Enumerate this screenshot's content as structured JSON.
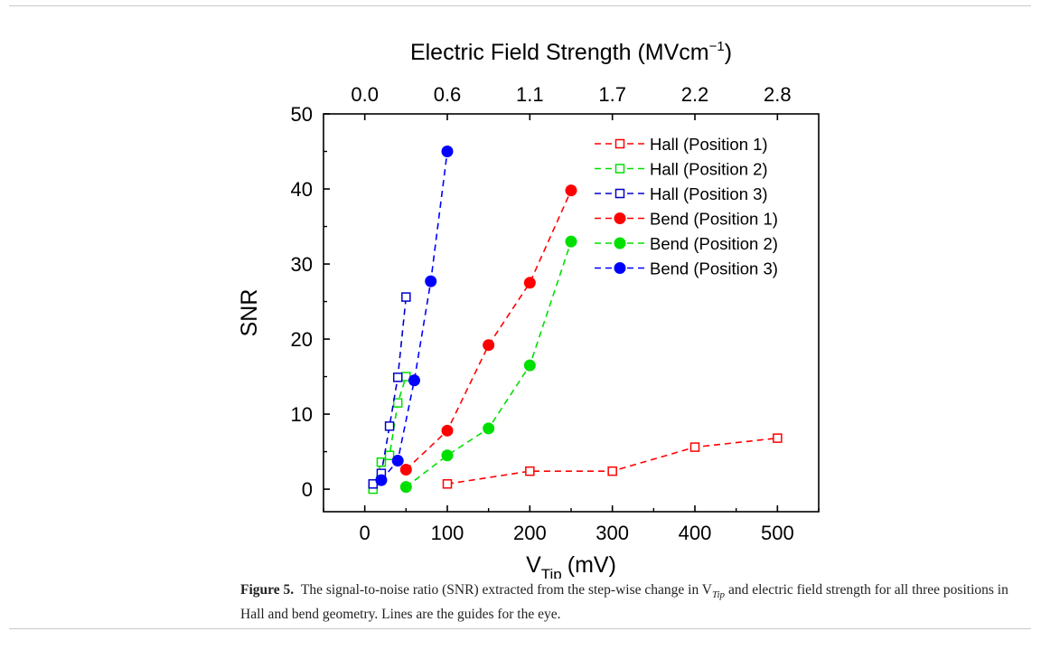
{
  "chart_data": {
    "type": "scatter",
    "title": "",
    "top_axis_label": "Electric Field Strength (MVcm⁻¹)",
    "top_axis_ticks": [
      {
        "x": 0,
        "label": "0.0"
      },
      {
        "x": 100,
        "label": "0.6"
      },
      {
        "x": 200,
        "label": "1.1"
      },
      {
        "x": 300,
        "label": "1.7"
      },
      {
        "x": 400,
        "label": "2.2"
      },
      {
        "x": 500,
        "label": "2.8"
      }
    ],
    "xlabel_main": "V",
    "xlabel_sub": "Tip",
    "xlabel_unit": "(mV)",
    "ylabel": "SNR",
    "xlim": [
      -50,
      550
    ],
    "ylim": [
      -3,
      50
    ],
    "xticks": [
      0,
      100,
      200,
      300,
      400,
      500
    ],
    "yticks": [
      0,
      10,
      20,
      30,
      40,
      50
    ],
    "grid": false,
    "legend_position": "top-right",
    "series": [
      {
        "name": "Hall (Position 1)",
        "color": "#ff0000",
        "marker": "open-square",
        "x": [
          100,
          200,
          300,
          400,
          500
        ],
        "y": [
          0.7,
          2.4,
          2.4,
          5.6,
          6.8
        ]
      },
      {
        "name": "Hall (Position 2)",
        "color": "#00e000",
        "marker": "open-square",
        "x": [
          10,
          20,
          30,
          40,
          50
        ],
        "y": [
          0.0,
          3.6,
          4.5,
          11.5,
          15.0
        ]
      },
      {
        "name": "Hall (Position 3)",
        "color": "#0000cc",
        "marker": "open-square",
        "x": [
          10,
          20,
          30,
          40,
          50
        ],
        "y": [
          0.7,
          2.1,
          8.4,
          14.9,
          25.6
        ]
      },
      {
        "name": "Bend (Position 1)",
        "color": "#ff0000",
        "marker": "filled-circle",
        "x": [
          50,
          100,
          150,
          200,
          250
        ],
        "y": [
          2.6,
          7.8,
          19.2,
          27.5,
          39.8
        ]
      },
      {
        "name": "Bend (Position 2)",
        "color": "#00e000",
        "marker": "filled-circle",
        "x": [
          50,
          100,
          150,
          200,
          250
        ],
        "y": [
          0.3,
          4.5,
          8.1,
          16.5,
          33.0
        ]
      },
      {
        "name": "Bend (Position 3)",
        "color": "#0000ff",
        "marker": "filled-circle",
        "x": [
          20,
          40,
          60,
          80,
          100
        ],
        "y": [
          1.2,
          3.8,
          14.5,
          27.7,
          45.0
        ]
      }
    ]
  },
  "caption": {
    "label": "Figure 5.",
    "text": "The signal-to-noise ratio (SNR) extracted from the step-wise change in V",
    "sub": "Tip",
    "text2": " and electric field strength for all three positions in Hall and bend geometry. Lines are the guides for the eye."
  }
}
